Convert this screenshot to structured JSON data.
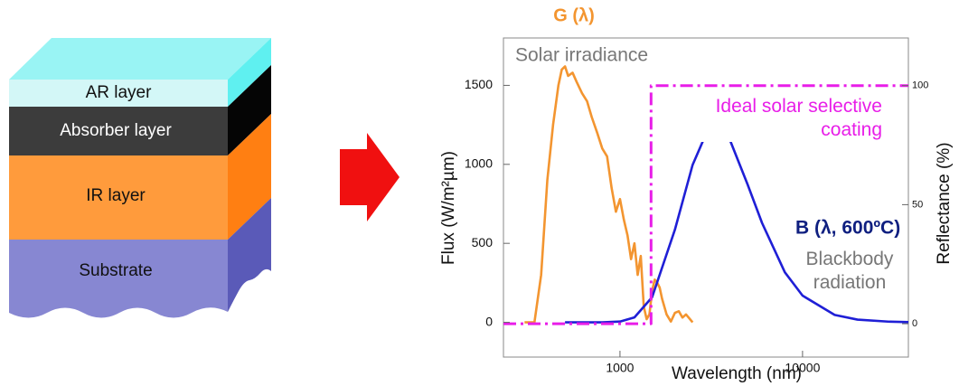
{
  "diagram": {
    "layers": [
      "AR layer",
      "Absorber layer",
      "IR layer",
      "Substrate"
    ]
  },
  "chart_data": {
    "type": "line",
    "xlabel": "Wavelength   (nm)",
    "ylabel": "Flux  (W/m²µm)",
    "y2label": "Reflectance (%)",
    "annotations": {
      "solar_symbol": "G (λ)",
      "blackbody_symbol": "B (λ, 600ºC)"
    },
    "xscale": "log",
    "xlim": [
      230,
      38000
    ],
    "xticks": [
      1000,
      10000
    ],
    "ylim": [
      -220,
      1800
    ],
    "yticks": [
      0,
      500,
      1000,
      1500
    ],
    "y2lim": [
      -14,
      120
    ],
    "y2ticks": [
      0,
      50,
      100
    ],
    "series": [
      {
        "name": "Solar irradiance",
        "color": "#f39530",
        "linestyle": "solid",
        "x": [
          300,
          340,
          370,
          400,
          430,
          460,
          480,
          500,
          520,
          550,
          580,
          620,
          660,
          700,
          750,
          800,
          850,
          900,
          950,
          1000,
          1050,
          1100,
          1150,
          1200,
          1250,
          1300,
          1350,
          1400,
          1450,
          1500,
          1550,
          1600,
          1650,
          1700,
          1800,
          1900,
          2000,
          2100,
          2200,
          2300,
          2500
        ],
        "values": [
          0,
          0,
          300,
          900,
          1250,
          1500,
          1600,
          1620,
          1560,
          1580,
          1520,
          1450,
          1400,
          1300,
          1200,
          1100,
          1050,
          850,
          700,
          780,
          650,
          550,
          400,
          500,
          300,
          420,
          100,
          20,
          50,
          200,
          270,
          250,
          220,
          150,
          50,
          5,
          60,
          70,
          30,
          50,
          0
        ]
      },
      {
        "name": "Blackbody radiation",
        "color": "#1f1fd6",
        "linestyle": "solid",
        "x": [
          500,
          800,
          1000,
          1200,
          1500,
          2000,
          2500,
          3000,
          3320,
          4000,
          5000,
          6000,
          8000,
          10000,
          15000,
          20000,
          30000,
          38000
        ],
        "values": [
          0,
          0.2,
          4.9,
          31,
          159,
          587,
          997,
          1208,
          1250,
          1155,
          873,
          629,
          317,
          169,
          47,
          17,
          4,
          1.6
        ]
      },
      {
        "name": "Ideal solar selective coating",
        "color": "#e81ee8",
        "linestyle": "dashdot",
        "axis": "y2",
        "x": [
          230,
          1480,
          1480,
          38000
        ],
        "values": [
          0,
          0,
          100,
          100
        ]
      }
    ]
  }
}
